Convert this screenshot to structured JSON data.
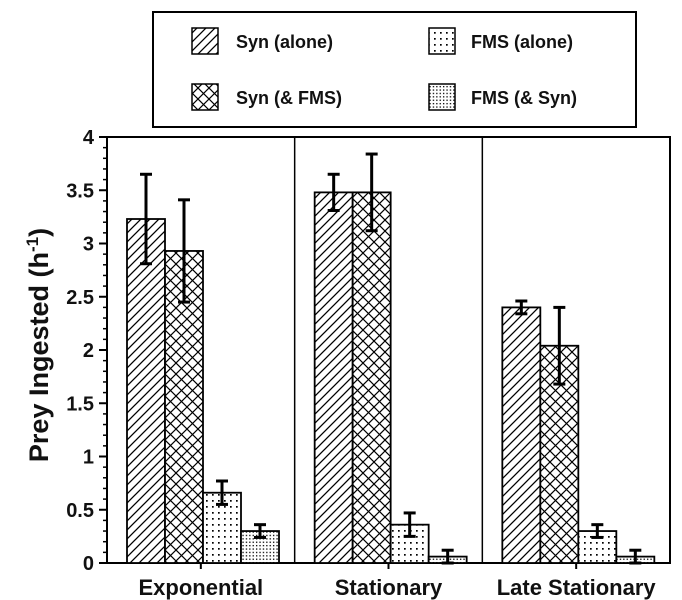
{
  "chart_data": {
    "type": "bar",
    "categories": [
      "Exponential",
      "Stationary",
      "Late Stationary"
    ],
    "series": [
      {
        "name": "Syn (alone)",
        "pattern": "hatch-diag",
        "values": [
          3.23,
          3.48,
          2.4
        ],
        "errors": [
          0.42,
          0.17,
          0.06
        ]
      },
      {
        "name": "Syn (& FMS)",
        "pattern": "hatch-cross",
        "values": [
          2.93,
          3.48,
          2.04
        ],
        "errors": [
          0.48,
          0.36,
          0.36
        ]
      },
      {
        "name": "FMS (alone)",
        "pattern": "dots-sparse",
        "values": [
          0.66,
          0.36,
          0.3
        ],
        "errors": [
          0.11,
          0.11,
          0.06
        ]
      },
      {
        "name": "FMS (& Syn)",
        "pattern": "dots-dense",
        "values": [
          0.3,
          0.06,
          0.06
        ],
        "errors": [
          0.06,
          0.06,
          0.06
        ]
      }
    ],
    "ylabel_main": "Prey Ingested (h",
    "ylabel_sup": "-1",
    "ylabel_end": ")",
    "ylim": [
      0,
      4
    ],
    "yticks": [
      "0",
      "0.5",
      "1",
      "1.5",
      "2",
      "2.5",
      "3",
      "3.5",
      "4"
    ],
    "legend_position": "top",
    "grid": false
  }
}
